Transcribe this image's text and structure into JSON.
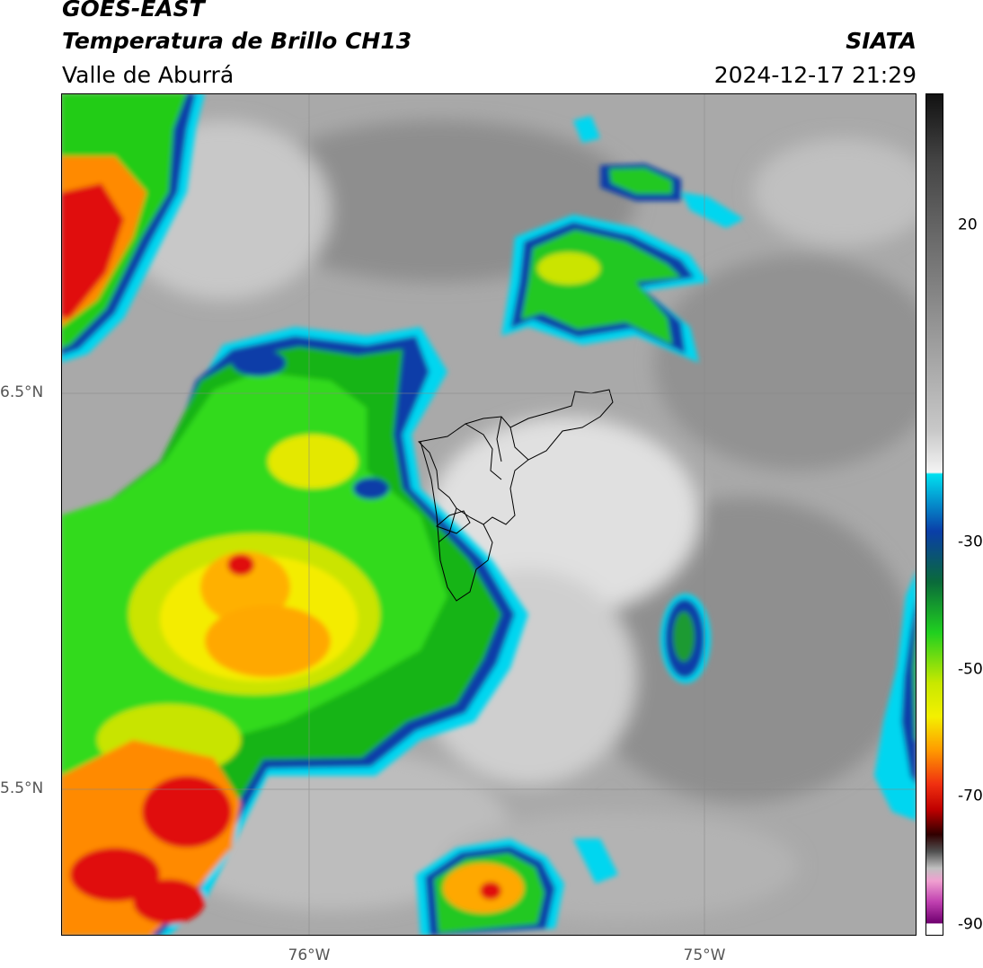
{
  "header": {
    "satellite": "GOES-EAST",
    "product": "Temperatura de Brillo CH13",
    "region": "Valle de Aburrá",
    "agency": "SIATA",
    "datetime": "2024-12-17 21:29"
  },
  "map": {
    "lat_labels": [
      "6.5°N",
      "5.5°N"
    ],
    "lon_labels": [
      "76°W",
      "75°W"
    ]
  },
  "colorbar": {
    "ticks": [
      "20",
      "-30",
      "-50",
      "-70",
      "-90"
    ],
    "colors": {
      "warm_gray": "#9a9a9a",
      "light_gray": "#e6e6e6",
      "cyan": "#00d6f0",
      "blue": "#0a3ea8",
      "green": "#18cc18",
      "yellow": "#f4f000",
      "orange": "#ff8a00",
      "red": "#e01010",
      "magenta": "#d040c0"
    }
  }
}
